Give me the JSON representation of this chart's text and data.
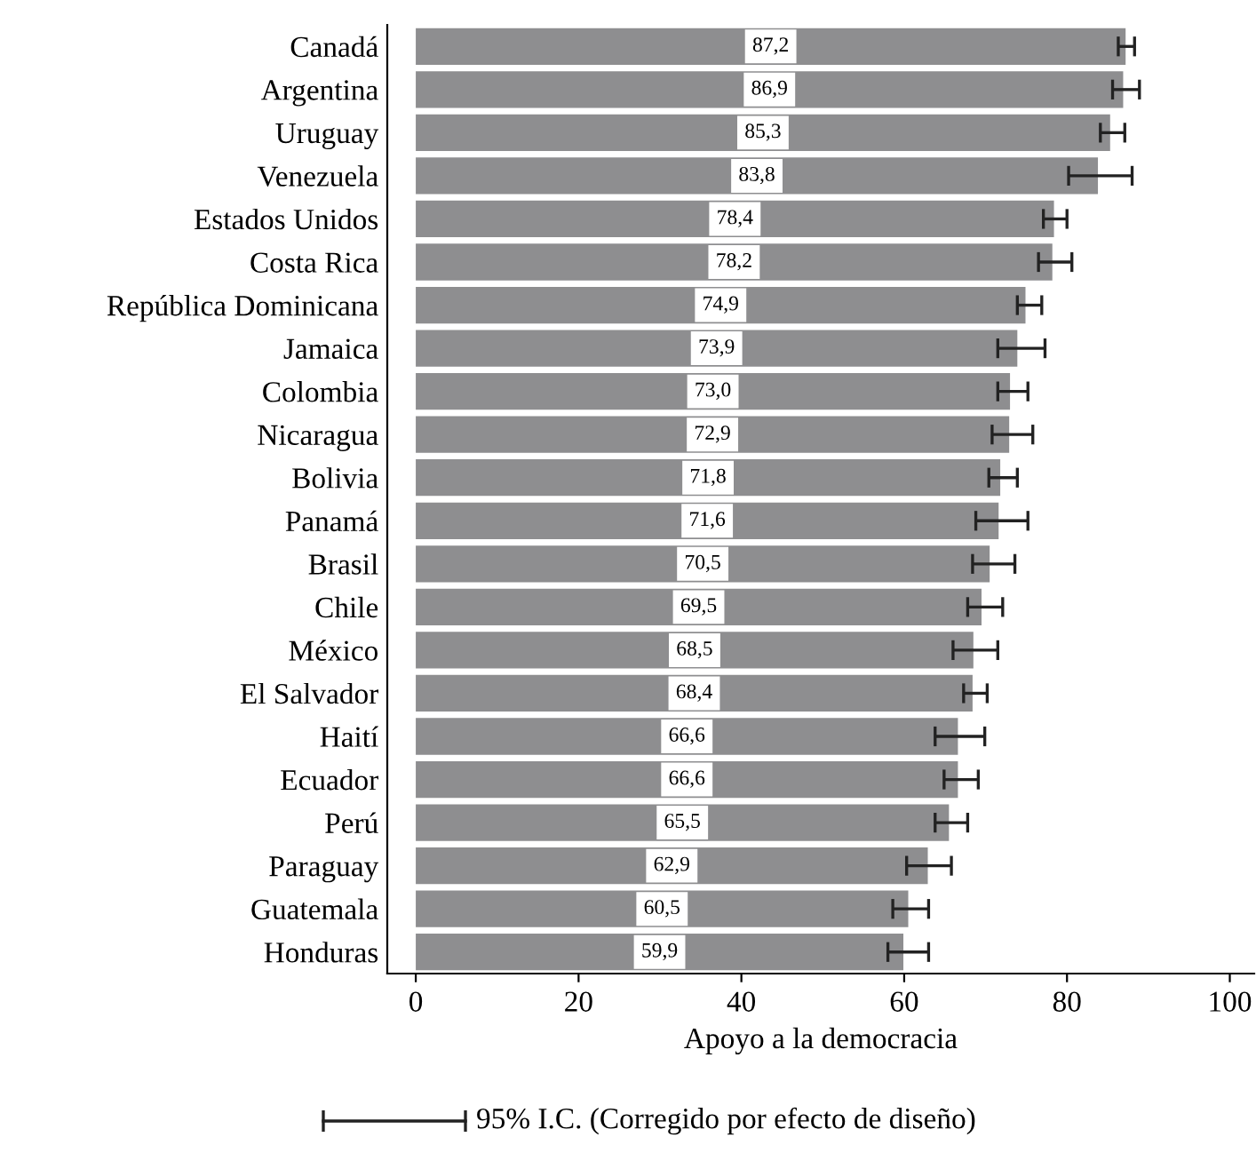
{
  "chart_data": {
    "type": "bar",
    "orientation": "horizontal",
    "xlabel": "Apoyo a la democracia",
    "categories": [
      "Canadá",
      "Argentina",
      "Uruguay",
      "Venezuela",
      "Estados Unidos",
      "Costa Rica",
      "República Dominicana",
      "Jamaica",
      "Colombia",
      "Nicaragua",
      "Bolivia",
      "Panamá",
      "Brasil",
      "Chile",
      "México",
      "El Salvador",
      "Haití",
      "Ecuador",
      "Perú",
      "Paraguay",
      "Guatemala",
      "Honduras"
    ],
    "values": [
      87.2,
      86.9,
      85.3,
      83.8,
      78.4,
      78.2,
      74.9,
      73.9,
      73.0,
      72.9,
      71.8,
      71.6,
      70.5,
      69.5,
      68.5,
      68.4,
      66.6,
      66.6,
      65.5,
      62.9,
      60.5,
      59.9
    ],
    "value_labels": [
      "87,2",
      "86,9",
      "85,3",
      "83,8",
      "78,4",
      "78,2",
      "74,9",
      "73,9",
      "73,0",
      "72,9",
      "71,8",
      "71,6",
      "70,5",
      "69,5",
      "68,5",
      "68,4",
      "66,6",
      "66,6",
      "65,5",
      "62,9",
      "60,5",
      "59,9"
    ],
    "errors": [
      [
        86.3,
        88.3
      ],
      [
        85.6,
        88.9
      ],
      [
        84.1,
        87.1
      ],
      [
        80.2,
        88.0
      ],
      [
        77.1,
        80.0
      ],
      [
        76.5,
        80.6
      ],
      [
        73.9,
        76.9
      ],
      [
        71.5,
        77.3
      ],
      [
        71.5,
        75.2
      ],
      [
        70.8,
        75.8
      ],
      [
        70.4,
        73.9
      ],
      [
        68.8,
        75.2
      ],
      [
        68.4,
        73.6
      ],
      [
        67.8,
        72.1
      ],
      [
        66.0,
        71.5
      ],
      [
        67.3,
        70.2
      ],
      [
        63.8,
        69.9
      ],
      [
        64.9,
        69.1
      ],
      [
        63.8,
        67.8
      ],
      [
        60.3,
        65.8
      ],
      [
        58.6,
        63.0
      ],
      [
        58.0,
        63.0
      ]
    ],
    "color": "#8e8e90",
    "xlim": [
      -3.5,
      103
    ],
    "xticks": [
      0,
      20,
      40,
      60,
      80,
      100
    ],
    "annotations": [
      "95% I.C. (Corregido por efecto de diseño)"
    ],
    "grid": false,
    "legend": false
  }
}
